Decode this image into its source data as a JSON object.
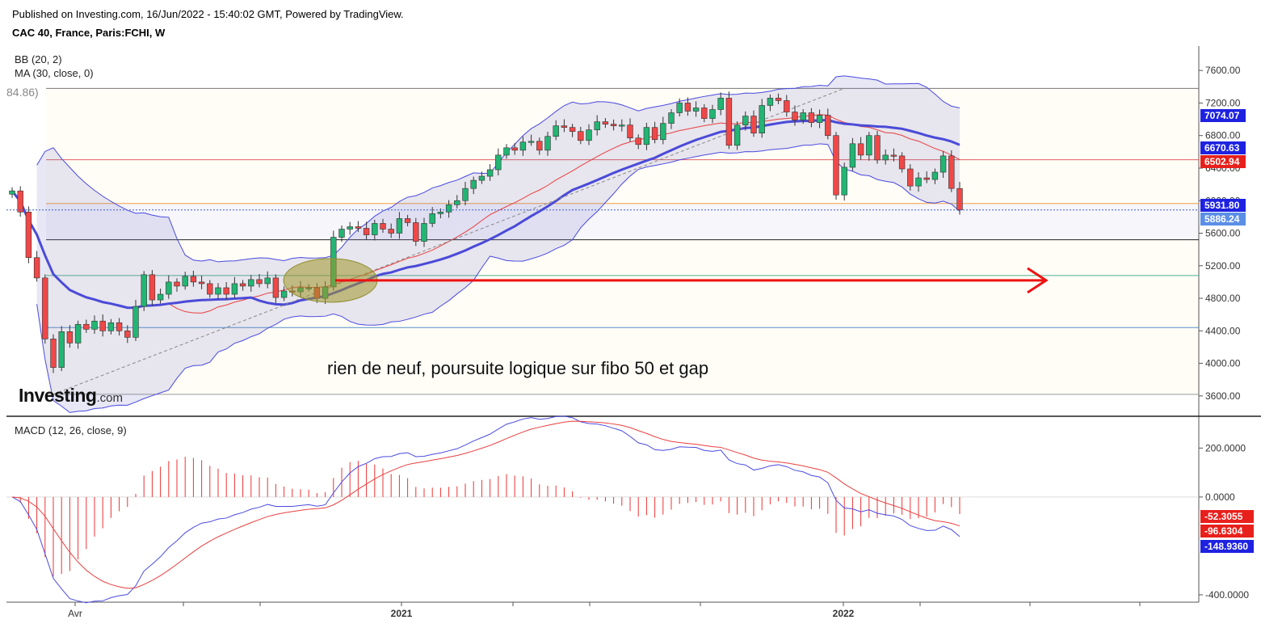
{
  "header": {
    "published": "Published on Investing.com, 16/Jun/2022 - 15:40:02 GMT, Powered by TradingView.",
    "instrument": "CAC 40, France, Paris:FCHI, W"
  },
  "indicators": {
    "bb": "BB (20, 2)",
    "ma": "MA (30, close, 0)",
    "faded_value": "84.86)",
    "macd": "MACD (12, 26, close, 9)"
  },
  "annotation": "rien de neuf, poursuite logique sur fibo 50 et gap",
  "logo": {
    "main": "Investing",
    "suffix": ".com"
  },
  "chart_data": [
    {
      "type": "candlestick",
      "title": "CAC 40, France, Paris:FCHI, W",
      "y_ticks": [
        "3600.00",
        "4000.00",
        "4400.00",
        "4800.00",
        "5200.00",
        "5600.00",
        "6000.00",
        "6400.00",
        "6800.00",
        "7200.00",
        "7600.00"
      ],
      "ylim": [
        3350,
        7900
      ],
      "x_ticks": [
        "Avr",
        "2021",
        "2022"
      ],
      "price_labels": [
        {
          "value": "7074.07",
          "bg": "#1e22e0"
        },
        {
          "value": "6670.63",
          "bg": "#1e22e0"
        },
        {
          "value": "6502.94",
          "bg": "#e8201c"
        },
        {
          "value": "5931.80",
          "bg": "#1e22e0"
        },
        {
          "value": "5886.24",
          "bg": "#5b8fe6"
        }
      ],
      "fibo_levels": [
        {
          "value": 7380,
          "color": "#777777"
        },
        {
          "value": 6503,
          "color": "#e06060"
        },
        {
          "value": 5965,
          "color": "#f0a040"
        },
        {
          "value": 5520,
          "color": "#222222"
        },
        {
          "value": 5080,
          "color": "#4fb08f"
        },
        {
          "value": 4440,
          "color": "#5590c8"
        },
        {
          "value": 3620,
          "color": "#999999"
        }
      ],
      "current_price": 5886.24,
      "gap_level": 5020,
      "closes": [
        6120,
        5860,
        5300,
        5050,
        4300,
        3950,
        4390,
        4250,
        4480,
        4420,
        4520,
        4400,
        4500,
        4400,
        4320,
        4700,
        5090,
        4780,
        4850,
        5000,
        4950,
        5070,
        5000,
        4980,
        4850,
        4930,
        4850,
        4980,
        4950,
        5030,
        4980,
        5050,
        4810,
        4890,
        4880,
        4930,
        4930,
        4800,
        4940,
        5550,
        5650,
        5680,
        5660,
        5580,
        5720,
        5650,
        5600,
        5780,
        5730,
        5500,
        5720,
        5840,
        5860,
        5950,
        6000,
        6150,
        6250,
        6300,
        6380,
        6560,
        6650,
        6620,
        6720,
        6730,
        6620,
        6790,
        6920,
        6900,
        6850,
        6740,
        6870,
        6970,
        6940,
        6920,
        6930,
        6770,
        6690,
        6900,
        6750,
        6950,
        7080,
        7200,
        7100,
        7140,
        7010,
        7120,
        7260,
        6680,
        6930,
        7040,
        6830,
        7170,
        7260,
        7230,
        7090,
        6990,
        7080,
        6960,
        7050,
        6800,
        6070,
        6410,
        6700,
        6560,
        6800,
        6500,
        6560,
        6550,
        6390,
        6180,
        6280,
        6260,
        6350,
        6550,
        6150,
        5886
      ],
      "macd_y_ticks": [
        "-400.0000",
        "0.0000",
        "200.0000"
      ],
      "macd_ylim": [
        -430,
        330
      ],
      "macd_labels": [
        {
          "value": "-52.3055",
          "bg": "#e8201c"
        },
        {
          "value": "-96.6304",
          "bg": "#e8201c"
        },
        {
          "value": "-148.9360",
          "bg": "#1e22e0"
        }
      ]
    }
  ]
}
